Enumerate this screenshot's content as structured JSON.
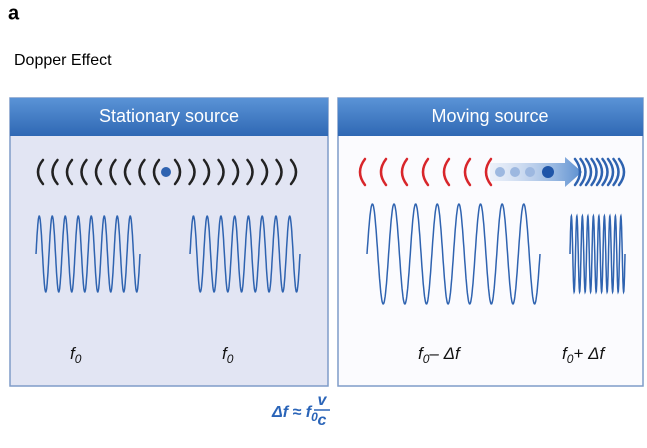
{
  "panel_letter": "a",
  "caption": "Dopper Effect",
  "panels": [
    {
      "title": "Stationary source",
      "labels": [
        {
          "base": "f",
          "sub": "0"
        },
        {
          "base": "f",
          "sub": "0"
        }
      ]
    },
    {
      "title": "Moving source",
      "labels": [
        {
          "base": "f",
          "sub": "0",
          "rest": "– Δf"
        },
        {
          "base": "f",
          "sub": "0",
          "rest": "+ Δf"
        }
      ]
    }
  ],
  "formula": {
    "lhs": "Δf ≈ f",
    "sub": "0",
    "numerator": "v",
    "denominator": "c"
  }
}
